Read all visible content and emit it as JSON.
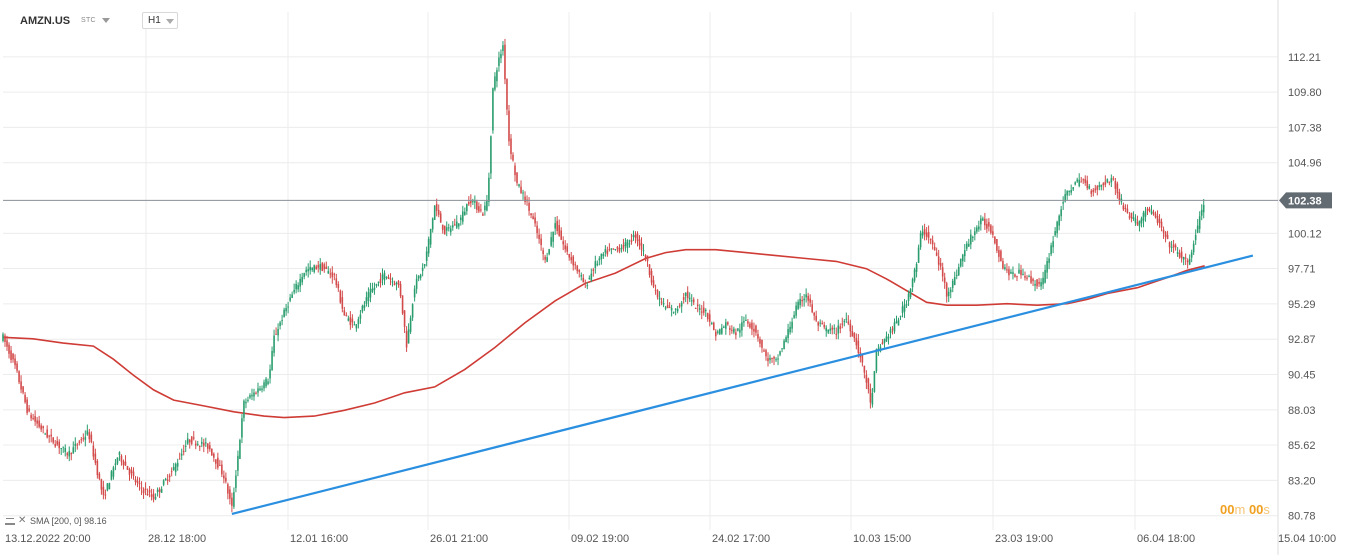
{
  "toolbar": {
    "symbol": "AMZN.US",
    "instrument_type": "STC",
    "timeframe": "H1"
  },
  "indicator_legend": {
    "name": "SMA",
    "params": "[200,  0]",
    "value": "98.16"
  },
  "countdown": {
    "minutes": "00",
    "minutes_unit": "m",
    "seconds": "00",
    "seconds_unit": "s"
  },
  "colors": {
    "candle_up": "#2a9d6e",
    "candle_down": "#d34a4a",
    "sma": "#cf3b35",
    "trendline": "#2b8fe0",
    "current_price_badge": "#626a72",
    "grid": "#ececec"
  },
  "chart_data": {
    "type": "candlestick",
    "symbol": "AMZN.US",
    "timeframe": "H1",
    "ylim": [
      79.8,
      114.6
    ],
    "y_ticks": [
      "112.21",
      "109.80",
      "107.38",
      "104.96",
      "102.38",
      "100.12",
      "97.71",
      "95.29",
      "92.87",
      "90.45",
      "88.03",
      "85.62",
      "83.20",
      "80.78"
    ],
    "x_ticks": [
      "13.12.2022  20:00",
      "28.12  18:00",
      "12.01  16:00",
      "26.01  21:00",
      "09.02  19:00",
      "24.02  17:00",
      "10.03  15:00",
      "23.03  19:00",
      "06.04  18:00",
      "15.04  10:00"
    ],
    "current_price": "102.38",
    "close_path": [
      [
        0,
        93.0
      ],
      [
        12,
        91.0
      ],
      [
        25,
        87.8
      ],
      [
        45,
        86.2
      ],
      [
        65,
        85.0
      ],
      [
        85,
        86.5
      ],
      [
        100,
        82.0
      ],
      [
        115,
        85.0
      ],
      [
        135,
        82.8
      ],
      [
        150,
        82.0
      ],
      [
        170,
        84.0
      ],
      [
        185,
        86.0
      ],
      [
        205,
        85.5
      ],
      [
        220,
        83.5
      ],
      [
        228,
        81.3
      ],
      [
        240,
        88.5
      ],
      [
        255,
        89.5
      ],
      [
        265,
        90.2
      ],
      [
        270,
        93.0
      ],
      [
        285,
        95.5
      ],
      [
        300,
        97.5
      ],
      [
        315,
        97.9
      ],
      [
        330,
        97.2
      ],
      [
        340,
        94.5
      ],
      [
        350,
        93.8
      ],
      [
        365,
        96.0
      ],
      [
        380,
        97.3
      ],
      [
        395,
        96.5
      ],
      [
        402,
        92.5
      ],
      [
        410,
        96.5
      ],
      [
        420,
        98.0
      ],
      [
        430,
        102.0
      ],
      [
        440,
        100.2
      ],
      [
        455,
        101.0
      ],
      [
        465,
        102.5
      ],
      [
        478,
        101.5
      ],
      [
        483,
        102.5
      ],
      [
        488,
        110.0
      ],
      [
        492,
        111.5
      ],
      [
        498,
        113.0
      ],
      [
        504,
        106.5
      ],
      [
        512,
        103.5
      ],
      [
        520,
        102.5
      ],
      [
        530,
        100.6
      ],
      [
        540,
        98.2
      ],
      [
        550,
        100.8
      ],
      [
        560,
        99.0
      ],
      [
        570,
        97.9
      ],
      [
        580,
        96.5
      ],
      [
        590,
        98.0
      ],
      [
        600,
        98.8
      ],
      [
        610,
        99.0
      ],
      [
        620,
        99.3
      ],
      [
        630,
        100.0
      ],
      [
        640,
        98.5
      ],
      [
        650,
        96.0
      ],
      [
        660,
        95.0
      ],
      [
        670,
        94.8
      ],
      [
        680,
        96.0
      ],
      [
        690,
        95.0
      ],
      [
        700,
        94.8
      ],
      [
        710,
        93.2
      ],
      [
        720,
        93.9
      ],
      [
        730,
        93.3
      ],
      [
        740,
        94.2
      ],
      [
        750,
        93.4
      ],
      [
        760,
        91.6
      ],
      [
        770,
        91.3
      ],
      [
        780,
        93.0
      ],
      [
        790,
        95.0
      ],
      [
        800,
        96.0
      ],
      [
        810,
        94.0
      ],
      [
        820,
        93.5
      ],
      [
        830,
        93.4
      ],
      [
        840,
        94.3
      ],
      [
        850,
        92.6
      ],
      [
        858,
        90.6
      ],
      [
        865,
        88.3
      ],
      [
        870,
        92.0
      ],
      [
        880,
        93.0
      ],
      [
        890,
        94.0
      ],
      [
        900,
        95.5
      ],
      [
        910,
        98.0
      ],
      [
        915,
        100.5
      ],
      [
        925,
        99.5
      ],
      [
        935,
        97.5
      ],
      [
        940,
        96.0
      ],
      [
        948,
        97.0
      ],
      [
        955,
        98.5
      ],
      [
        965,
        100.0
      ],
      [
        975,
        101.0
      ],
      [
        985,
        100.3
      ],
      [
        995,
        98.0
      ],
      [
        1005,
        97.2
      ],
      [
        1015,
        97.5
      ],
      [
        1025,
        96.8
      ],
      [
        1035,
        96.6
      ],
      [
        1045,
        99.5
      ],
      [
        1055,
        102.2
      ],
      [
        1065,
        103.4
      ],
      [
        1075,
        103.8
      ],
      [
        1085,
        103.0
      ],
      [
        1095,
        103.5
      ],
      [
        1105,
        103.9
      ],
      [
        1112,
        102.5
      ],
      [
        1120,
        101.5
      ],
      [
        1130,
        100.8
      ],
      [
        1140,
        101.8
      ],
      [
        1150,
        101.0
      ],
      [
        1160,
        99.5
      ],
      [
        1170,
        98.8
      ],
      [
        1180,
        98.0
      ],
      [
        1187,
        99.7
      ],
      [
        1192,
        101.2
      ],
      [
        1197,
        102.38
      ]
    ],
    "sma_200": [
      [
        0,
        93.0
      ],
      [
        30,
        92.9
      ],
      [
        60,
        92.6
      ],
      [
        90,
        92.4
      ],
      [
        110,
        91.5
      ],
      [
        130,
        90.4
      ],
      [
        150,
        89.4
      ],
      [
        170,
        88.7
      ],
      [
        200,
        88.3
      ],
      [
        230,
        87.9
      ],
      [
        260,
        87.6
      ],
      [
        280,
        87.5
      ],
      [
        310,
        87.6
      ],
      [
        340,
        88.0
      ],
      [
        370,
        88.5
      ],
      [
        400,
        89.2
      ],
      [
        430,
        89.6
      ],
      [
        460,
        90.8
      ],
      [
        490,
        92.3
      ],
      [
        520,
        94.0
      ],
      [
        550,
        95.5
      ],
      [
        580,
        96.7
      ],
      [
        610,
        97.4
      ],
      [
        640,
        98.4
      ],
      [
        660,
        98.8
      ],
      [
        680,
        99.0
      ],
      [
        710,
        99.0
      ],
      [
        740,
        98.8
      ],
      [
        770,
        98.6
      ],
      [
        800,
        98.4
      ],
      [
        830,
        98.2
      ],
      [
        860,
        97.7
      ],
      [
        880,
        97.0
      ],
      [
        900,
        96.2
      ],
      [
        920,
        95.4
      ],
      [
        940,
        95.2
      ],
      [
        970,
        95.2
      ],
      [
        1000,
        95.3
      ],
      [
        1030,
        95.2
      ],
      [
        1060,
        95.3
      ],
      [
        1080,
        95.6
      ],
      [
        1100,
        96.0
      ],
      [
        1130,
        96.4
      ],
      [
        1160,
        97.1
      ],
      [
        1180,
        97.6
      ],
      [
        1197,
        97.9
      ]
    ],
    "trendline": {
      "start": [
        228,
        80.9
      ],
      "end": [
        1245,
        98.6
      ]
    },
    "indicator": {
      "name": "SMA",
      "period": 200,
      "shift": 0,
      "value": 98.16
    }
  }
}
